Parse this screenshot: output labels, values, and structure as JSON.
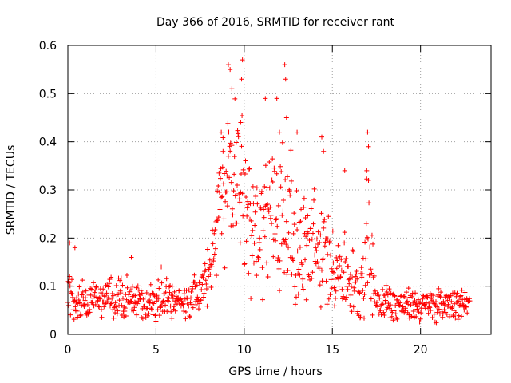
{
  "chart_data": {
    "type": "scatter",
    "title": "Day 366 of 2016, SRMTID for receiver rant",
    "xlabel": "GPS time / hours",
    "ylabel": "SRMTID / TECUs",
    "xlim": [
      0,
      24
    ],
    "ylim": [
      0,
      0.6
    ],
    "xticks": [
      0,
      5,
      10,
      15,
      20
    ],
    "xtick_labels": [
      "0",
      "5",
      "10",
      "15",
      "20"
    ],
    "yticks": [
      0,
      0.1,
      0.2,
      0.3,
      0.4,
      0.5,
      0.6
    ],
    "ytick_labels": [
      "0",
      "0.1",
      "0.2",
      "0.3",
      "0.4",
      "0.5",
      "0.6"
    ],
    "grid": true,
    "marker": "plus",
    "series_color": "#ff0000",
    "series": [
      {
        "name": "SRMTID",
        "sample_interval_hours": 0.025,
        "envelope": [
          {
            "t": 0.0,
            "base": 0.07,
            "spread": 0.05
          },
          {
            "t": 0.3,
            "base": 0.09,
            "spread": 0.08
          },
          {
            "t": 1.0,
            "base": 0.06,
            "spread": 0.04
          },
          {
            "t": 2.0,
            "base": 0.08,
            "spread": 0.05
          },
          {
            "t": 3.3,
            "base": 0.08,
            "spread": 0.06
          },
          {
            "t": 4.5,
            "base": 0.06,
            "spread": 0.04
          },
          {
            "t": 5.5,
            "base": 0.08,
            "spread": 0.05
          },
          {
            "t": 6.5,
            "base": 0.06,
            "spread": 0.04
          },
          {
            "t": 7.5,
            "base": 0.09,
            "spread": 0.05
          },
          {
            "t": 8.0,
            "base": 0.12,
            "spread": 0.07
          },
          {
            "t": 8.5,
            "base": 0.25,
            "spread": 0.14
          },
          {
            "t": 9.2,
            "base": 0.32,
            "spread": 0.2
          },
          {
            "t": 10.0,
            "base": 0.28,
            "spread": 0.22
          },
          {
            "t": 10.8,
            "base": 0.22,
            "spread": 0.15
          },
          {
            "t": 11.5,
            "base": 0.26,
            "spread": 0.2
          },
          {
            "t": 12.3,
            "base": 0.25,
            "spread": 0.22
          },
          {
            "t": 13.0,
            "base": 0.18,
            "spread": 0.14
          },
          {
            "t": 14.0,
            "base": 0.17,
            "spread": 0.16
          },
          {
            "t": 15.0,
            "base": 0.15,
            "spread": 0.1
          },
          {
            "t": 16.0,
            "base": 0.12,
            "spread": 0.1
          },
          {
            "t": 16.5,
            "base": 0.08,
            "spread": 0.06
          },
          {
            "t": 17.0,
            "base": 0.2,
            "spread": 0.18
          },
          {
            "t": 17.5,
            "base": 0.07,
            "spread": 0.05
          },
          {
            "t": 19.0,
            "base": 0.06,
            "spread": 0.04
          },
          {
            "t": 20.0,
            "base": 0.06,
            "spread": 0.04
          },
          {
            "t": 21.0,
            "base": 0.06,
            "spread": 0.04
          },
          {
            "t": 22.0,
            "base": 0.07,
            "spread": 0.04
          },
          {
            "t": 22.8,
            "base": 0.06,
            "spread": 0.03
          }
        ],
        "peaks": [
          {
            "t": 9.1,
            "y": 0.56
          },
          {
            "t": 9.2,
            "y": 0.55
          },
          {
            "t": 9.3,
            "y": 0.51
          },
          {
            "t": 9.9,
            "y": 0.57
          },
          {
            "t": 9.85,
            "y": 0.53
          },
          {
            "t": 9.8,
            "y": 0.44
          },
          {
            "t": 11.2,
            "y": 0.49
          },
          {
            "t": 11.85,
            "y": 0.49
          },
          {
            "t": 12.3,
            "y": 0.56
          },
          {
            "t": 12.35,
            "y": 0.53
          },
          {
            "t": 12.4,
            "y": 0.45
          },
          {
            "t": 12.0,
            "y": 0.42
          },
          {
            "t": 13.0,
            "y": 0.42
          },
          {
            "t": 14.4,
            "y": 0.41
          },
          {
            "t": 14.5,
            "y": 0.38
          },
          {
            "t": 17.0,
            "y": 0.42
          },
          {
            "t": 17.05,
            "y": 0.39
          },
          {
            "t": 16.95,
            "y": 0.34
          },
          {
            "t": 15.7,
            "y": 0.34
          },
          {
            "t": 8.7,
            "y": 0.42
          },
          {
            "t": 8.8,
            "y": 0.38
          },
          {
            "t": 0.1,
            "y": 0.19
          },
          {
            "t": 0.4,
            "y": 0.18
          },
          {
            "t": 3.6,
            "y": 0.16
          },
          {
            "t": 5.3,
            "y": 0.14
          }
        ]
      }
    ]
  }
}
